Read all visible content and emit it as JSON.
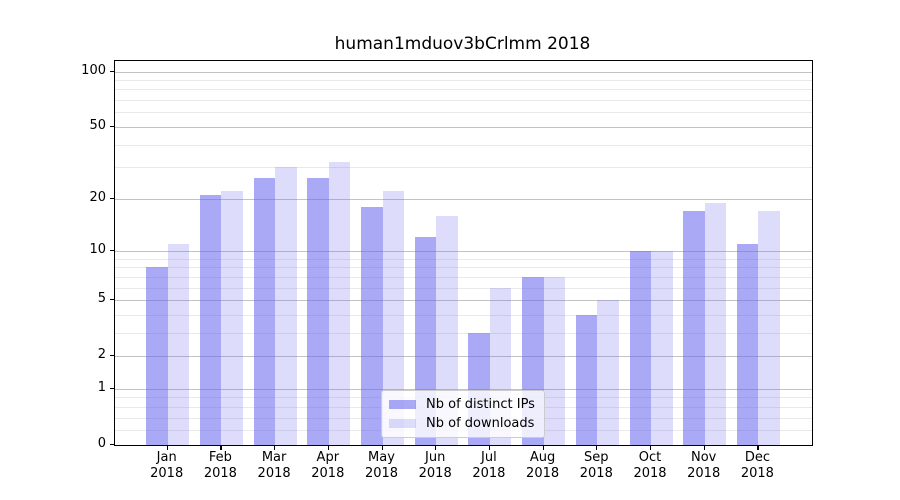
{
  "chart_data": {
    "type": "bar",
    "title": "human1mduov3bCrlmm 2018",
    "categories": [
      "Jan",
      "Feb",
      "Mar",
      "Apr",
      "May",
      "Jun",
      "Jul",
      "Aug",
      "Sep",
      "Oct",
      "Nov",
      "Dec"
    ],
    "category_year": "2018",
    "series": [
      {
        "name": "Nb of distinct IPs",
        "color": "rgba(99,99,237,0.55)",
        "values": [
          8,
          21,
          26,
          26,
          18,
          12,
          3,
          7,
          4,
          10,
          17,
          11
        ]
      },
      {
        "name": "Nb of downloads",
        "color": "rgba(99,99,237,0.22)",
        "values": [
          11,
          22,
          30,
          32,
          22,
          16,
          6,
          7,
          5,
          10,
          19,
          17
        ]
      }
    ],
    "xlabel": "",
    "ylabel": "",
    "yscale": "log1p",
    "ylim": [
      0,
      114
    ],
    "yticks": [
      0,
      1,
      2,
      5,
      10,
      20,
      50,
      100
    ],
    "minor_yticks": [
      0.2,
      0.4,
      0.6,
      0.8,
      3,
      4,
      6,
      7,
      8,
      9,
      30,
      40,
      60,
      70,
      80,
      90
    ],
    "grid": true,
    "legend_position": "lower center",
    "colors": {
      "major_grid": "#c3c3c3",
      "minor_grid": "#e9e9e9",
      "spine": "#000000",
      "background": "#ffffff"
    }
  }
}
